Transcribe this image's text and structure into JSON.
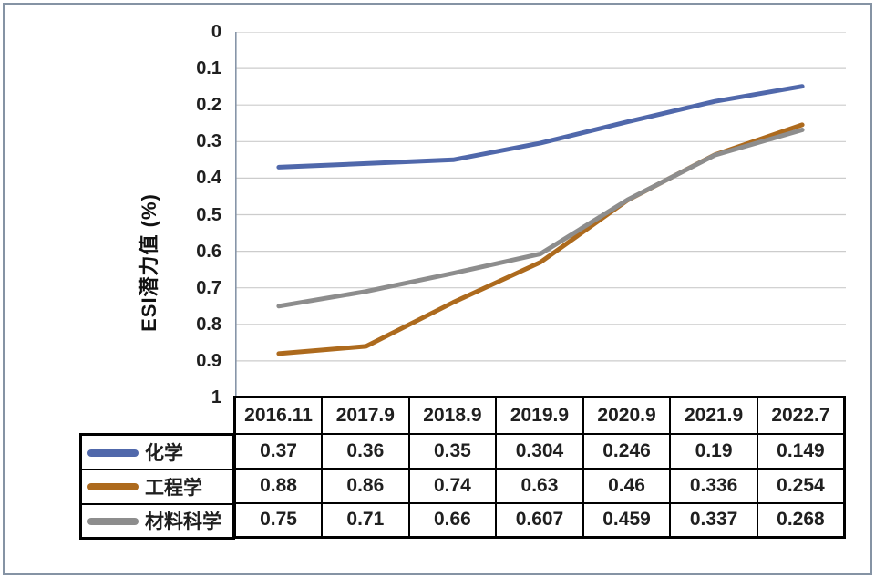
{
  "chart": {
    "y_axis_title": "ESI潜力值 (%)",
    "y_ticks": [
      "0",
      "0.1",
      "0.2",
      "0.3",
      "0.4",
      "0.5",
      "0.6",
      "0.7",
      "0.8",
      "0.9",
      "1"
    ]
  },
  "chart_data": {
    "type": "line",
    "categories": [
      "2016.11",
      "2017.9",
      "2018.9",
      "2019.9",
      "2020.9",
      "2021.9",
      "2022.7"
    ],
    "series": [
      {
        "key": "chemistry",
        "name": "化学",
        "color": "#5068ab",
        "values": [
          0.37,
          0.36,
          0.35,
          0.304,
          0.246,
          0.19,
          0.149
        ]
      },
      {
        "key": "engineering",
        "name": "工程学",
        "color": "#ad6a1d",
        "values": [
          0.88,
          0.86,
          0.74,
          0.63,
          0.46,
          0.336,
          0.254
        ]
      },
      {
        "key": "materials-science",
        "name": "材料科学",
        "color": "#8d8d8d",
        "values": [
          0.75,
          0.71,
          0.66,
          0.607,
          0.459,
          0.337,
          0.268
        ]
      }
    ],
    "title": "",
    "xlabel": "",
    "ylabel": "ESI潜力值 (%)",
    "ylim": [
      0,
      1
    ],
    "y_inverted": true,
    "grid": true,
    "legend_position": "table-left"
  },
  "colors": {
    "gridline": "#cccccc",
    "axis_line": "#8795a8",
    "outer_frame": "#8593a4",
    "table_border": "#000000",
    "text": "#1f1f1f"
  }
}
